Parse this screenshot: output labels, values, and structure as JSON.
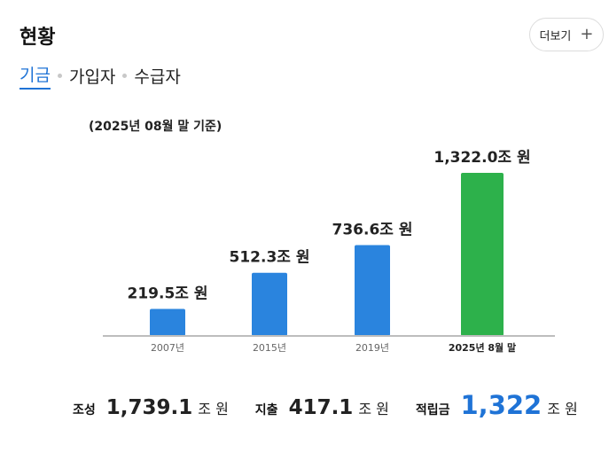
{
  "header": {
    "title": "현황",
    "more_label": "더보기",
    "more_icon": "plus-icon"
  },
  "tabs": [
    {
      "label": "기금",
      "active": true
    },
    {
      "label": "가입자",
      "active": false
    },
    {
      "label": "수급자",
      "active": false
    }
  ],
  "basis_note": "(2025년 08월 말 기준)",
  "chart_data": {
    "type": "bar",
    "categories": [
      "2007년",
      "2015년",
      "2019년",
      "2025년 8월 말"
    ],
    "values": [
      219.5,
      512.3,
      736.6,
      1322.0
    ],
    "value_labels": [
      "219.5조 원",
      "512.3조 원",
      "736.6조 원",
      "1,322.0조 원"
    ],
    "colors": [
      "#2a84de",
      "#2a84de",
      "#2a84de",
      "#2db14b"
    ],
    "highlight_index": 3,
    "ylim": [
      0,
      1322.0
    ]
  },
  "summary": {
    "items": [
      {
        "label": "조성",
        "value": "1,739.1",
        "unit": "조 원"
      },
      {
        "label": "지출",
        "value": "417.1",
        "unit": "조 원"
      },
      {
        "label": "적립금",
        "value": "1,322",
        "unit": "조 원"
      }
    ]
  }
}
